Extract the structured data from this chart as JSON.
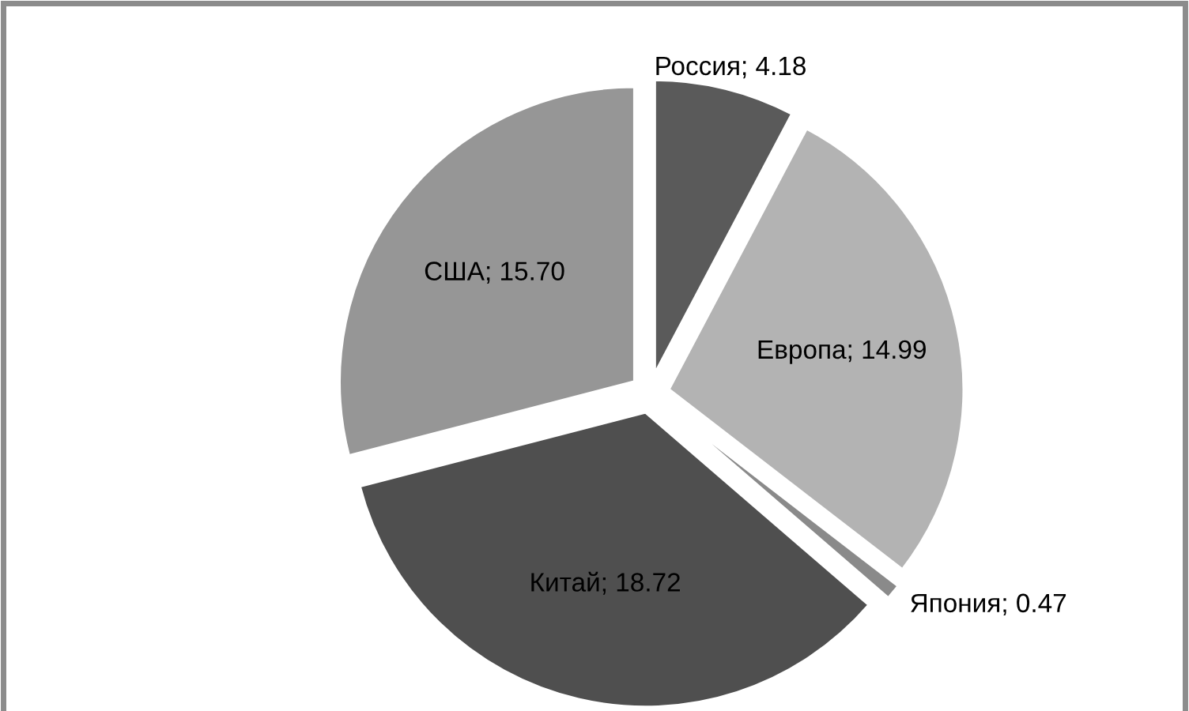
{
  "chart_data": {
    "type": "pie",
    "categories": [
      "Россия",
      "Европа",
      "Япония",
      "Китай",
      "США"
    ],
    "values": [
      4.18,
      14.99,
      0.47,
      18.72,
      15.7
    ],
    "value_labels": [
      "4.18",
      "14.99",
      "0.47",
      "18.72",
      "15.70"
    ],
    "colors": [
      "#5a5a5a",
      "#b3b3b3",
      "#8a8a8a",
      "#4f4f4f",
      "#969696"
    ],
    "legend": false
  }
}
